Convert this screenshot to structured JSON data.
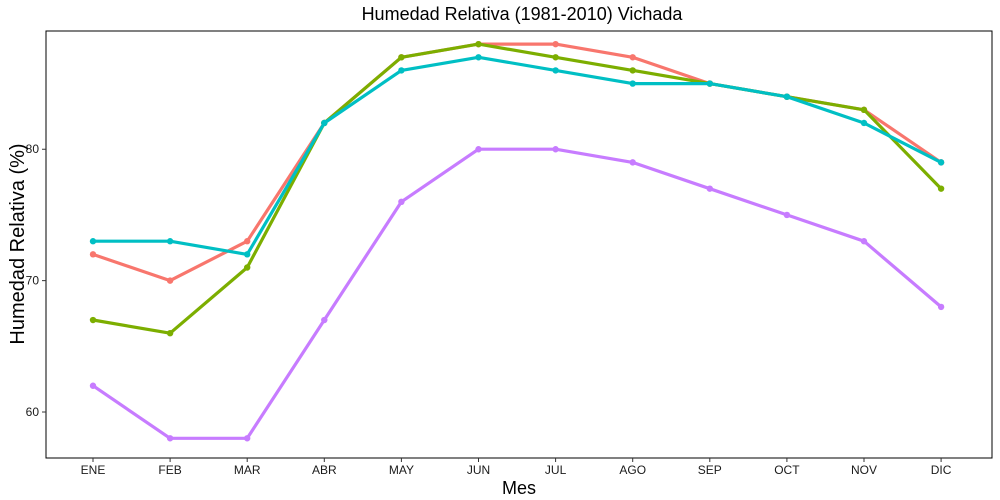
{
  "chart_data": {
    "type": "line",
    "title": "Humedad Relativa (1981-2010)  Vichada",
    "xlabel": "Mes",
    "ylabel": "Humedad Relativa  (%)",
    "categories": [
      "ENE",
      "FEB",
      "MAR",
      "ABR",
      "MAY",
      "JUN",
      "JUL",
      "AGO",
      "SEP",
      "OCT",
      "NOV",
      "DIC"
    ],
    "ylim": [
      56.5,
      89
    ],
    "yticks": [
      60,
      70,
      80
    ],
    "grid": false,
    "legend": "none",
    "series": [
      {
        "color": "#F8766D",
        "values": [
          72,
          70,
          73,
          82,
          87,
          88,
          88,
          87,
          85,
          84,
          83,
          79
        ]
      },
      {
        "color": "#7CAE00",
        "values": [
          67,
          66,
          71,
          82,
          87,
          88,
          87,
          86,
          85,
          84,
          83,
          77
        ]
      },
      {
        "color": "#00BFC4",
        "values": [
          73,
          73,
          72,
          82,
          86,
          87,
          86,
          85,
          85,
          84,
          82,
          79
        ]
      },
      {
        "color": "#C77CFF",
        "values": [
          62,
          58,
          58,
          67,
          76,
          80,
          80,
          79,
          77,
          75,
          73,
          68
        ]
      }
    ]
  }
}
